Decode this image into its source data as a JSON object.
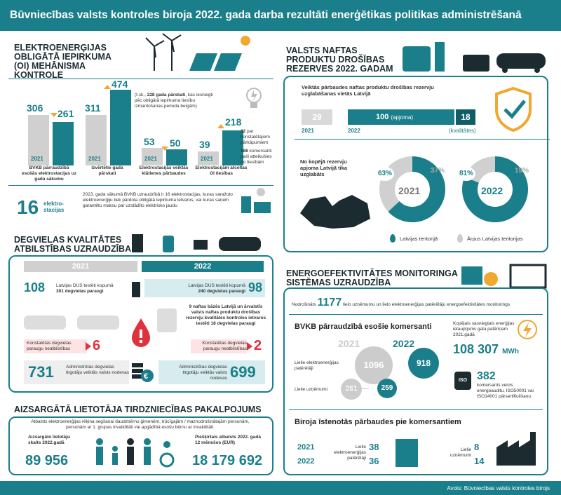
{
  "title": "Būvniecības valsts kontroles biroja 2022. gada darba rezultāti enerģētikas politikas administrēšanā",
  "oi": {
    "title": "ELEKTROENERĢIJAS OBLIGĀTĀ IEPIRKUMA (OI) MEHĀNISMA KONTROLE",
    "groups": [
      {
        "label": "BVKB pārraudzībā esošās elektrostacijas uz gada sākumu",
        "v2021": "306",
        "v2022": "261",
        "trend": "down"
      },
      {
        "label": "Izvērtētie gada pārskati",
        "v2021": "311",
        "v2022": "474",
        "trend": "up"
      },
      {
        "label": "Elektrostacijās veiktās klātienes pārbaudes",
        "v2021": "53",
        "v2022": "50",
        "trend": "down"
      },
      {
        "label": "Elektrostacijām atceltas OI tiesības",
        "v2021": "39",
        "v2022": "218",
        "trend": "up"
      }
    ],
    "y2021": "2021",
    "y2022": "2022",
    "note_bold": "228 gada pārskati",
    "note_pre": "(t.sk.,",
    "note_post": ", kas iesniegti pēc obligātā iepirkuma tiesību izmantošanas perioda beigām)",
    "note32_num": "32",
    "note32_text": "par konstatētajiem pārkāpumiem",
    "note186_num": "186",
    "note186_text": "komersanti paši atteikušies no tiesībām",
    "stations_num": "16",
    "stations_unit": "elektro-stacijas",
    "stations_text": "2023. gada sākumā BVKB uzraudzībā ir 16 elektrostacijas, kuras saražoto elektroenerģiju tiek pārdota obligātā iepirkuma ietvaros, vai kuras saņem garantētu maksu par uzstādīto elektrisko jaudu"
  },
  "oil": {
    "title": "VALSTS NAFTAS PRODUKTU DROŠĪBAS REZERVES 2022. GADAM",
    "checked_text": "Veiktās pārbaudes naftas produktu drošības rezervju uzglabāšanas vietās Latvijā",
    "v2021": "29",
    "v2022": "100",
    "v2022_label": "(apjoma)",
    "v2022_quality": "18",
    "quality_label": "(kvalitātes)",
    "y2021": "2021",
    "y2022": "2022",
    "share_text": "No kopējā rezervju apjoma Latvijā tika uzglabāts",
    "d2021_in": "63%",
    "d2021_out": "37%",
    "d2022_in": "81%",
    "d2022_out": "19%",
    "legend_in": "Latvijas teritorijā",
    "legend_out": "Ārpus Latvijas teritorijas"
  },
  "fuel": {
    "title": "DEGVIELAS KVALITĀTES ATBILSTĪBAS UZRAUDZĪBA",
    "y2021": "2021",
    "y2022": "2022",
    "tested2021_num": "108",
    "tested2021_text": "Latvijas DUS testēti kopumā",
    "tested2021_bold": "301 degvielas paraugi",
    "tested2022_num": "98",
    "tested2022_text": "Latvijas DUS testēti kopumā",
    "tested2022_bold": "240 degvielas paraugi",
    "bases_text": "9 naftas bāzēs Latvijā un ārvalstīs valsts naftas produktu drošības rezervju kvalitātes kontroles ietvaros testēti 18 degvielas paraugi",
    "nonconf_label": "Konstatētas degvielas paraugu neatbilstības",
    "nonconf2021": "6",
    "nonconf2022": "2",
    "admin2021_num": "731",
    "admin2022_num": "699",
    "admin_text": "Administrētas degvielas tirgotāju veiktās valsts nodevas"
  },
  "protected": {
    "title": "AIZSARGĀTĀ LIETOTĀJA TIRDZNIECĪBAS PAKALPOJUMS",
    "intro": "Atbalsts elektroenerģijas rēķina segšanai daudzbērnu ģimenēm, trūcīgajām / maznodrošinātajām personām, personām ar 1. grupas invaliditāti vai apgādībā esošu bērnu ar invaliditāti.",
    "count_label": "Aizsargāto lietotāju skaits 2022.gadā",
    "count": "89 956",
    "funds_label": "Piešķirtais atbalsts 2022. gadā 12 mēnešos (EUR)",
    "funds": "18 179 692"
  },
  "eff": {
    "title": "ENERGOEFEKTIVITĀTES MONITORINGA SISTĒMAS UZRAUDZĪBA",
    "secured_pre": "Nodrošināts",
    "secured_num": "1177",
    "secured_post": "lielo uzņēmumu un lielo elektroenerģijas patērētāju energoefektivitātes monitorings",
    "sub": "BVKB pārraudzībā esošie komersanti",
    "y2021": "2021",
    "y2022": "2022",
    "big_users": "Lielie elektroenerģijas patērētāji",
    "big_cos": "Lielie uzņēmumi",
    "bu2021": "1096",
    "bu2022": "918",
    "bc2021": "261",
    "bc2022": "259",
    "savings_label": "Kopējais sasniegtais enerģijas ietaupījums gala patēriņam 2021.gadā",
    "savings": "108 307",
    "savings_unit": "MWh",
    "audit_num": "382",
    "audit_text": "komersants veicis energoauditu, ISO50001 vai ISO14001 pārsertificēšanu",
    "iso": "ISO",
    "inspect_title": "Biroja īstenotās pārbaudes pie komersantiem",
    "insp_big_users": "Lielie elektroenerģijas patērētāji",
    "insp_big_cos": "Lielie uzņēmumi",
    "iu2021": "38",
    "iu2022": "36",
    "ic2021": "8",
    "ic2022": "14"
  },
  "source": "Avots: Būvniecības valsts kontroles birojs",
  "colors": {
    "teal": "#1a7f8a",
    "gray": "#d0d0d0",
    "orange": "#f0a830",
    "red": "#e0323c"
  }
}
